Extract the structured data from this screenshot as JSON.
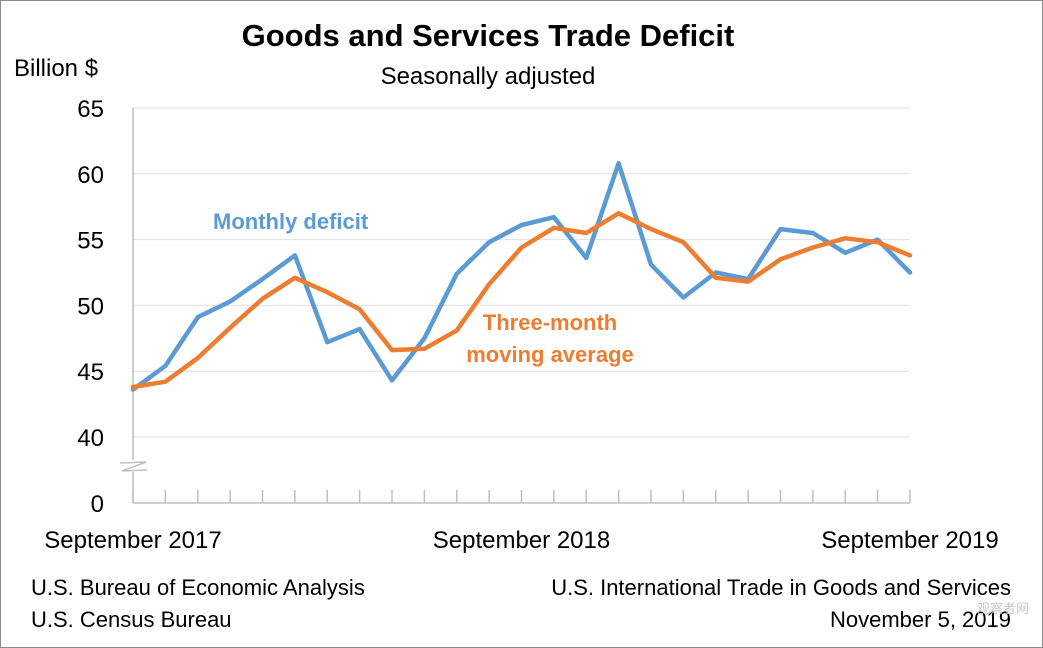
{
  "colors": {
    "monthly": "#5b9bd5",
    "average": "#ed7d31",
    "grid": "#e0e0e0",
    "axis": "#bfbfbf"
  },
  "chart_data": {
    "type": "line",
    "title": "Goods and Services Trade Deficit",
    "subtitle": "Seasonally adjusted",
    "ylabel": "Billion $",
    "xlabel": "",
    "ylim": [
      40,
      65
    ],
    "yticks": [
      "65",
      "60",
      "55",
      "50",
      "45",
      "40",
      "0"
    ],
    "axis_break": true,
    "grid": true,
    "x_tick_labels": [
      "September 2017",
      "September 2018",
      "September 2019"
    ],
    "x": [
      "Sep 2017",
      "Oct 2017",
      "Nov 2017",
      "Dec 2017",
      "Jan 2018",
      "Feb 2018",
      "Mar 2018",
      "Apr 2018",
      "May 2018",
      "Jun 2018",
      "Jul 2018",
      "Aug 2018",
      "Sep 2018",
      "Oct 2018",
      "Nov 2018",
      "Dec 2018",
      "Jan 2019",
      "Feb 2019",
      "Mar 2019",
      "Apr 2019",
      "May 2019",
      "Jun 2019",
      "Jul 2019",
      "Aug 2019",
      "Sep 2019"
    ],
    "series": [
      {
        "name": "Monthly deficit",
        "label_lines": [
          "Monthly deficit"
        ],
        "values": [
          43.6,
          45.4,
          49.1,
          50.3,
          52.0,
          53.8,
          47.2,
          48.2,
          44.3,
          47.5,
          52.4,
          54.8,
          56.1,
          56.7,
          53.6,
          60.8,
          53.1,
          50.6,
          52.5,
          52.0,
          55.8,
          55.5,
          54.0,
          55.0,
          52.5
        ]
      },
      {
        "name": "Three-month moving average",
        "label_lines": [
          "Three-month",
          "moving average"
        ],
        "values": [
          43.8,
          44.2,
          46.0,
          48.3,
          50.5,
          52.1,
          51.0,
          49.7,
          46.6,
          46.7,
          48.1,
          51.6,
          54.4,
          55.9,
          55.5,
          57.0,
          55.8,
          54.8,
          52.1,
          51.8,
          53.5,
          54.4,
          55.1,
          54.8,
          53.8
        ]
      }
    ]
  },
  "footer": {
    "source_1": "U.S. Bureau of Economic Analysis",
    "source_2": "U.S. Census Bureau",
    "report": "U.S. International Trade in Goods and Services",
    "date": "November 5, 2019"
  },
  "watermark": "观察者网"
}
